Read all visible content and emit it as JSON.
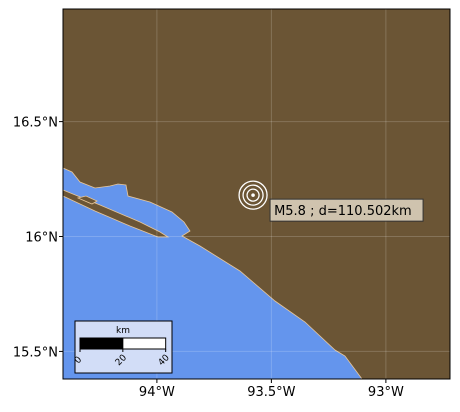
{
  "map": {
    "xlim": [
      -94.41,
      -92.72
    ],
    "ylim": [
      15.38,
      16.99
    ],
    "xticks": [
      {
        "value": -94,
        "label": "94°W"
      },
      {
        "value": -93.5,
        "label": "93.5°W"
      },
      {
        "value": -93,
        "label": "93°W"
      }
    ],
    "yticks": [
      {
        "value": 16.5,
        "label": "16.5°N"
      },
      {
        "value": 16,
        "label": "16°N"
      },
      {
        "value": 15.5,
        "label": "15.5°N"
      }
    ],
    "event": {
      "lon": -93.58,
      "lat": 16.18,
      "label": "M5.8 ; d=110.502km"
    },
    "scalebar": {
      "unit": "km",
      "ticks": [
        0,
        20,
        40
      ]
    }
  }
}
